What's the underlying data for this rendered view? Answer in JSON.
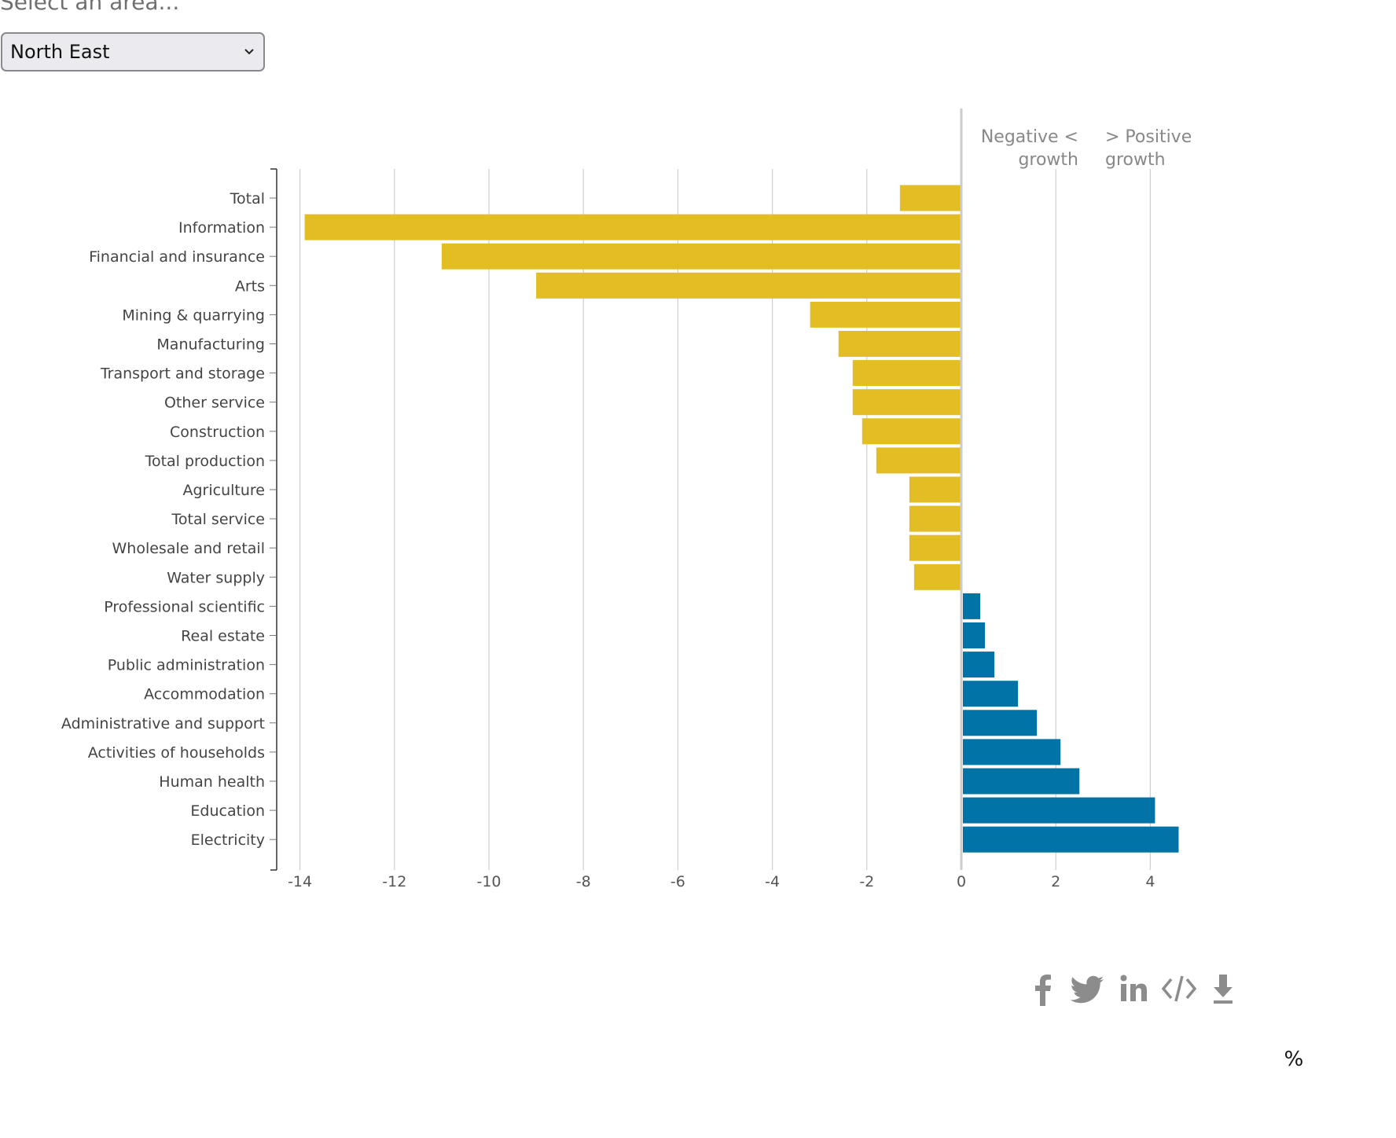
{
  "selector": {
    "label": "Select an area...",
    "selected": "North East"
  },
  "colors": {
    "negative": "#e2bd24",
    "positive": "#0173a6",
    "grid": "#cfcfcf",
    "zero_line": "#cccccc",
    "icons": "#8c8c8c"
  },
  "annotations": {
    "negative_line1": "Negative <",
    "negative_line2": "growth",
    "positive_line1": "> Positive",
    "positive_line2": "growth"
  },
  "unit_label": "%",
  "share_icons": [
    "facebook-icon",
    "twitter-icon",
    "linkedin-icon",
    "embed-code-icon",
    "download-icon"
  ],
  "chart_data": {
    "type": "bar",
    "orientation": "horizontal",
    "title": "",
    "xlabel": "%",
    "ylabel": "",
    "xlim": [
      -14.5,
      4.6
    ],
    "x_ticks": [
      -14,
      -12,
      -10,
      -8,
      -6,
      -4,
      -2,
      0,
      2,
      4
    ],
    "grid": true,
    "categories": [
      "Total",
      "Information",
      "Financial and insurance",
      "Arts",
      "Mining & quarrying",
      "Manufacturing",
      "Transport and storage",
      "Other service",
      "Construction",
      "Total production",
      "Agriculture",
      "Total service",
      "Wholesale and retail",
      "Water supply",
      "Professional scientific",
      "Real estate",
      "Public administration",
      "Accommodation",
      "Administrative and support",
      "Activities of households",
      "Human health",
      "Education",
      "Electricity"
    ],
    "values": [
      -1.3,
      -13.9,
      -11.0,
      -9.0,
      -3.2,
      -2.6,
      -2.3,
      -2.3,
      -2.1,
      -1.8,
      -1.1,
      -1.1,
      -1.1,
      -1.0,
      0.4,
      0.5,
      0.7,
      1.2,
      1.6,
      2.1,
      2.5,
      4.1,
      4.6
    ]
  }
}
